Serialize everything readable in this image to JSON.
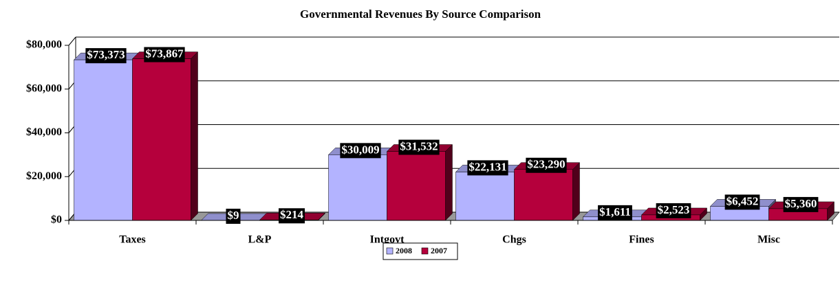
{
  "chart_data": {
    "type": "bar3d",
    "title": "Governmental Revenues By Source Comparison",
    "categories": [
      "Taxes",
      "L&P",
      "Intgovt",
      "Chgs",
      "Fines",
      "Misc"
    ],
    "series": [
      {
        "name": "2008",
        "color": "#b3b3ff",
        "values": [
          73373,
          9,
          30009,
          22131,
          1611,
          6452
        ],
        "value_labels": [
          "$73,373",
          "$9",
          "$30,009",
          "$22,131",
          "$1,611",
          "$6,452"
        ]
      },
      {
        "name": "2007",
        "color": "#b5003c",
        "values": [
          73867,
          214,
          31532,
          23290,
          2523,
          5360
        ],
        "value_labels": [
          "$73,867",
          "$214",
          "$31,532",
          "$23,290",
          "$2,523",
          "$5,360"
        ]
      }
    ],
    "ylim": [
      0,
      80000
    ],
    "yticks": [
      {
        "value": 0,
        "label": "$0"
      },
      {
        "value": 20000,
        "label": "$20,000"
      },
      {
        "value": 40000,
        "label": "$40,000"
      },
      {
        "value": 60000,
        "label": "$60,000"
      },
      {
        "value": 80000,
        "label": "$80,000"
      }
    ],
    "grid": true,
    "legend": "bottom"
  }
}
